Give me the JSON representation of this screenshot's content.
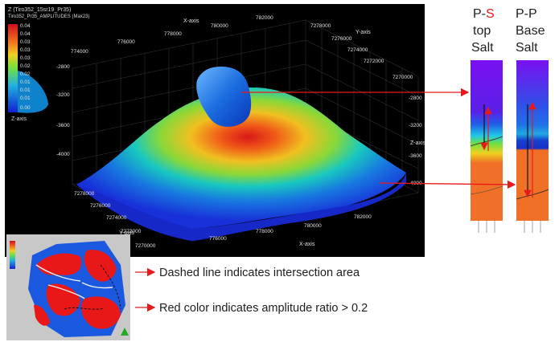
{
  "viewer": {
    "title_line1": "Z (Tiro352_15sr19_Pr35)",
    "title_line2": "Tiro352_Pr35_AMPLITUDES (Max23)",
    "colorbar_ticks": [
      "0.04",
      "0.04",
      "0.03",
      "0.03",
      "0.03",
      "0.02",
      "0.02",
      "0.01",
      "0.01",
      "0.01",
      "0.00"
    ],
    "colorbar_axis_label": "Z-axis",
    "x_axis_label_top": "X-axis",
    "x_axis_ticks_top": [
      "774000",
      "776000",
      "778000",
      "780000",
      "782000"
    ],
    "y_axis_label_right": "Y-axis",
    "y_axis_ticks_right": [
      "7278000",
      "7276000",
      "7274000",
      "7272000",
      "7270000"
    ],
    "z_axis_ticks_left": [
      "-2800",
      "-3200",
      "-3600",
      "-4000"
    ],
    "z_axis_label_right": "Z-axis",
    "z_axis_ticks_right": [
      "-2800",
      "-3200",
      "-3600",
      "-4000"
    ],
    "y_axis_ticks_front": [
      "7278000",
      "7276000",
      "7274000",
      "7272000",
      "7270000"
    ],
    "y_axis_label_front": "Y-axis",
    "x_axis_ticks_front": [
      "776000",
      "778000",
      "780000",
      "782000"
    ],
    "x_axis_label_front": "X-axis"
  },
  "panels": {
    "ps_line1": "P-",
    "ps_highlight": "S",
    "ps_line2": "top",
    "ps_line3": "Salt",
    "pp_line1": "P-P",
    "pp_line2": "Base",
    "pp_line3": "Salt"
  },
  "annotations": {
    "dashed": "Dashed line indicates intersection area",
    "red": "Red color indicates amplitude ratio > 0.2"
  },
  "colors": {
    "arrow": "#e8191b",
    "viewer_bg": "#000000",
    "highlight": "#e8191b"
  }
}
